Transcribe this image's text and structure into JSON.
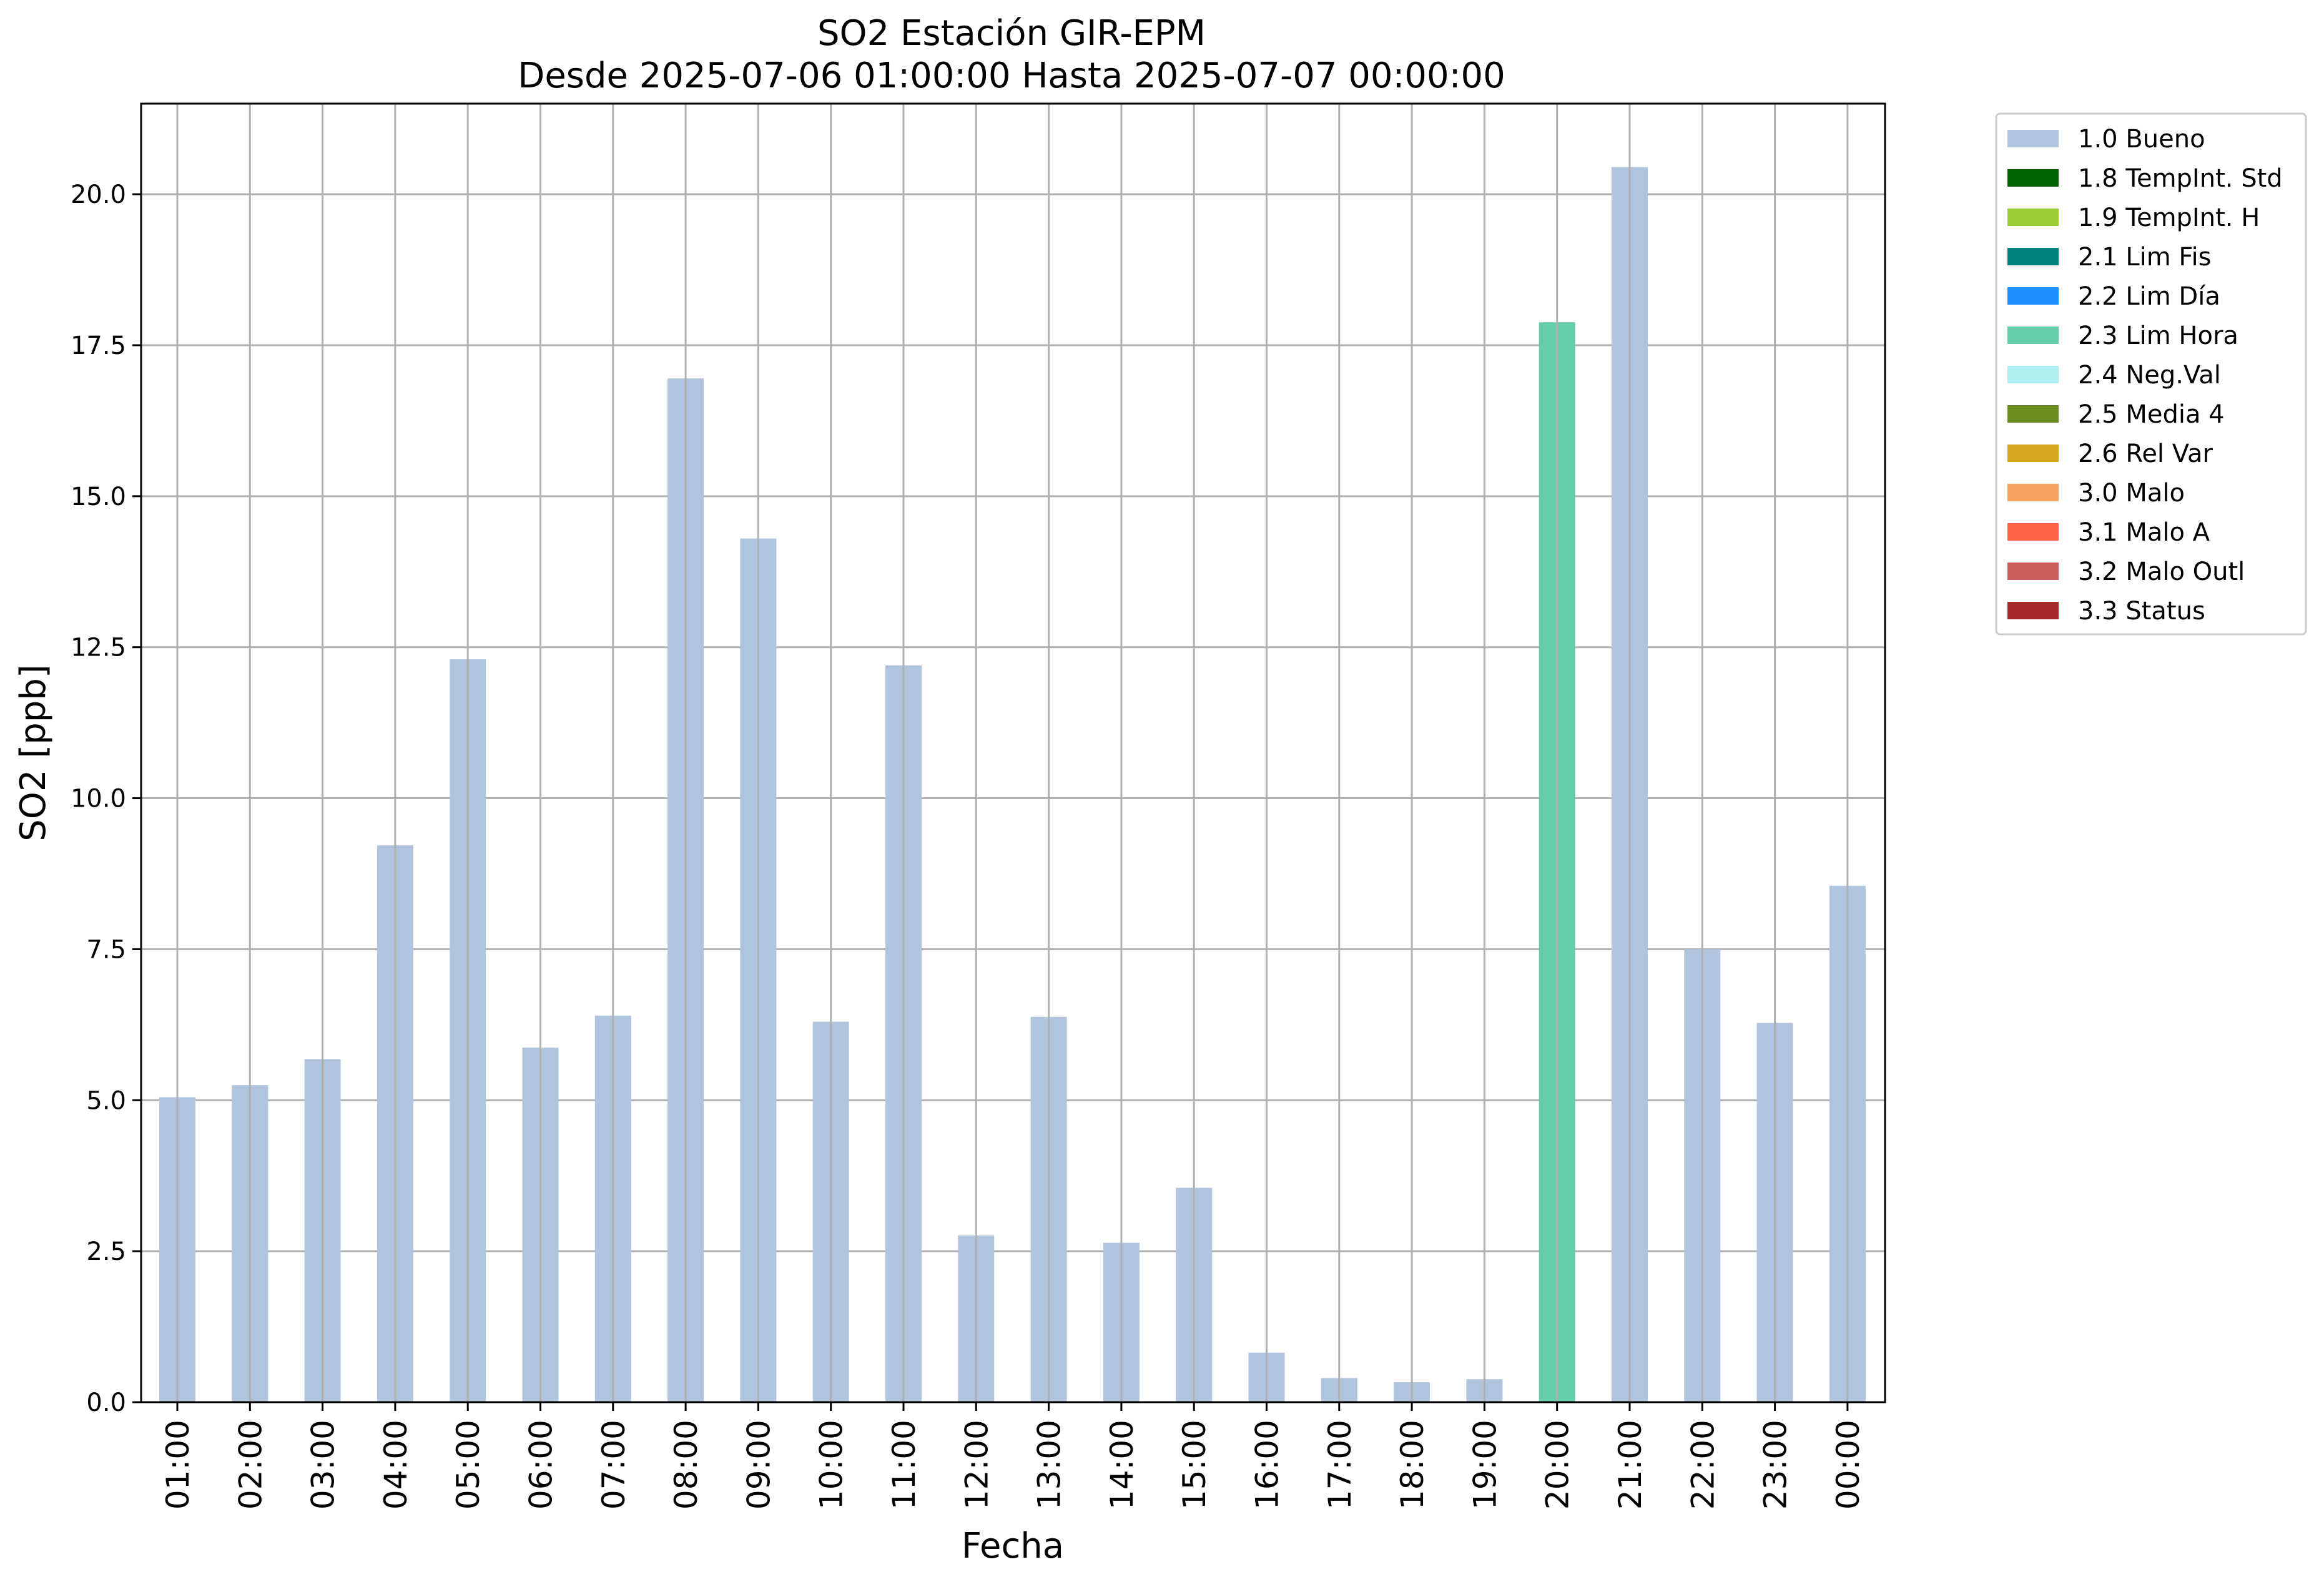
{
  "chart_data": {
    "type": "bar",
    "title": "SO2 Estación GIR-EPM",
    "subtitle": "Desde 2025-07-06 01:00:00 Hasta 2025-07-07 00:00:00",
    "xlabel": "Fecha",
    "ylabel": "SO2 [ppb]",
    "ylim": [
      0,
      21.5
    ],
    "yticks": [
      0.0,
      2.5,
      5.0,
      7.5,
      10.0,
      12.5,
      15.0,
      17.5,
      20.0
    ],
    "ytick_labels": [
      "0.0",
      "2.5",
      "5.0",
      "7.5",
      "10.0",
      "12.5",
      "15.0",
      "17.5",
      "20.0"
    ],
    "grid": true,
    "legend_position": "outside-top-right",
    "categories": [
      "01:00",
      "02:00",
      "03:00",
      "04:00",
      "05:00",
      "06:00",
      "07:00",
      "08:00",
      "09:00",
      "10:00",
      "11:00",
      "12:00",
      "13:00",
      "14:00",
      "15:00",
      "16:00",
      "17:00",
      "18:00",
      "19:00",
      "20:00",
      "21:00",
      "22:00",
      "23:00",
      "00:00"
    ],
    "values": [
      5.05,
      5.25,
      5.68,
      9.22,
      12.3,
      5.87,
      6.4,
      16.95,
      14.3,
      6.3,
      12.2,
      2.76,
      6.38,
      2.64,
      3.55,
      0.82,
      0.4,
      0.33,
      0.38,
      17.88,
      20.45,
      7.5,
      6.28,
      8.55
    ],
    "flags": [
      "1.0 Bueno",
      "1.0 Bueno",
      "1.0 Bueno",
      "1.0 Bueno",
      "1.0 Bueno",
      "1.0 Bueno",
      "1.0 Bueno",
      "1.0 Bueno",
      "1.0 Bueno",
      "1.0 Bueno",
      "1.0 Bueno",
      "1.0 Bueno",
      "1.0 Bueno",
      "1.0 Bueno",
      "1.0 Bueno",
      "1.0 Bueno",
      "1.0 Bueno",
      "1.0 Bueno",
      "1.0 Bueno",
      "2.3 Lim Hora",
      "1.0 Bueno",
      "1.0 Bueno",
      "1.0 Bueno",
      "1.0 Bueno"
    ],
    "legend": [
      {
        "label": "1.0 Bueno",
        "color": "#b0c4de"
      },
      {
        "label": "1.8 TempInt. Std",
        "color": "#006400"
      },
      {
        "label": "1.9 TempInt. H",
        "color": "#9acd32"
      },
      {
        "label": "2.1 Lim Fis",
        "color": "#008080"
      },
      {
        "label": "2.2 Lim Día",
        "color": "#1e90ff"
      },
      {
        "label": "2.3 Lim Hora",
        "color": "#66cdaa"
      },
      {
        "label": "2.4 Neg.Val",
        "color": "#afeeee"
      },
      {
        "label": "2.5 Media 4",
        "color": "#6b8e23"
      },
      {
        "label": "2.6 Rel Var",
        "color": "#daa520"
      },
      {
        "label": "3.0 Malo",
        "color": "#f4a460"
      },
      {
        "label": "3.1 Malo A",
        "color": "#ff6347"
      },
      {
        "label": "3.2 Malo Outl",
        "color": "#cd5c5c"
      },
      {
        "label": "3.3 Status",
        "color": "#a52a2a"
      }
    ]
  }
}
